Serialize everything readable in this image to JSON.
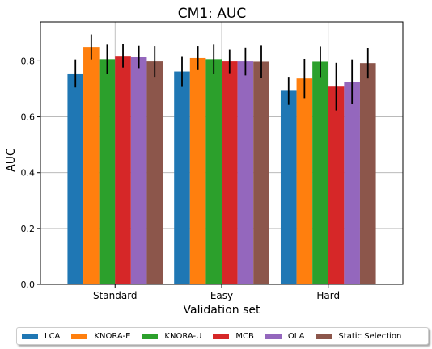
{
  "chart_data": {
    "type": "bar",
    "title": "CM1: AUC",
    "xlabel": "Validation set",
    "ylabel": "AUC",
    "categories": [
      "Standard",
      "Easy",
      "Hard"
    ],
    "ylim": [
      0,
      0.94
    ],
    "yticks": [
      "0.0",
      "0.2",
      "0.4",
      "0.6",
      "0.8"
    ],
    "grid": true,
    "legend_position": "bottom",
    "series": [
      {
        "name": "LCA",
        "color": "#1f77b4",
        "values": [
          0.755,
          0.762,
          0.693
        ],
        "errors": [
          0.05,
          0.055,
          0.05
        ]
      },
      {
        "name": "KNORA-E",
        "color": "#ff7f0e",
        "values": [
          0.85,
          0.81,
          0.737
        ],
        "errors": [
          0.045,
          0.043,
          0.07
        ]
      },
      {
        "name": "KNORA-U",
        "color": "#2ca02c",
        "values": [
          0.806,
          0.806,
          0.797
        ],
        "errors": [
          0.052,
          0.052,
          0.055
        ]
      },
      {
        "name": "MCB",
        "color": "#d62728",
        "values": [
          0.818,
          0.798,
          0.708
        ],
        "errors": [
          0.042,
          0.042,
          0.085
        ]
      },
      {
        "name": "OLA",
        "color": "#9467bd",
        "values": [
          0.814,
          0.798,
          0.725
        ],
        "errors": [
          0.04,
          0.05,
          0.08
        ]
      },
      {
        "name": "Static Selection",
        "color": "#8c564b",
        "values": [
          0.798,
          0.797,
          0.792
        ],
        "errors": [
          0.055,
          0.058,
          0.055
        ]
      }
    ]
  }
}
